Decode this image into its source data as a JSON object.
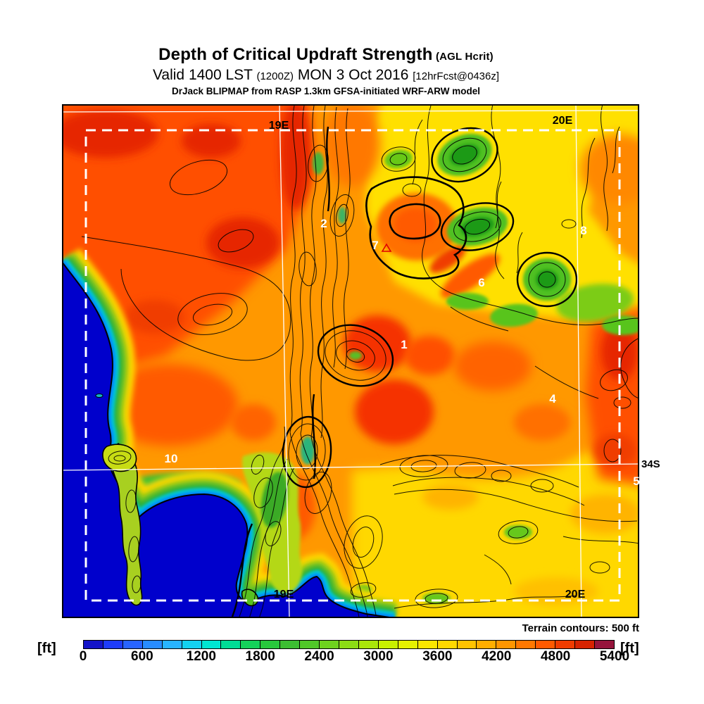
{
  "title": {
    "line1": "Depth of Critical Updraft Strength",
    "line1_suffix": " (AGL Hcrit)",
    "line2_a": "Valid 1400 LST ",
    "line2_b": "(1200Z)",
    "line2_c": " MON 3 Oct 2016 ",
    "line2_d": "[12hrFcst@0436z]",
    "line3": "DrJack BLIPMAP from RASP 1.3km GFSA-initiated WRF-ARW model"
  },
  "map": {
    "note": "Terrain contours: 500 ft",
    "grid_labels": {
      "top_19e": "19E",
      "top_20e": "20E",
      "bottom_19e": "19E",
      "bottom_20e": "20E",
      "right_34s": "34S"
    },
    "sites": [
      "1",
      "2",
      "4",
      "5",
      "6",
      "7",
      "8",
      "10"
    ],
    "colors": {
      "ocean": "#0000cc",
      "coastline": "#000000",
      "graticule": "#ffffff",
      "domain_boundary": "#ffffff",
      "terrain_contour": "#000000",
      "site_label": "#ffffff",
      "site_marker": "#e00000"
    }
  },
  "colorbar": {
    "unit_left": "[ft]",
    "unit_right": "[ft]",
    "ticks": [
      "0",
      "600",
      "1200",
      "1800",
      "2400",
      "3000",
      "3600",
      "4200",
      "4800",
      "5400"
    ],
    "min": 0,
    "max": 5400,
    "step_ft": 200,
    "segment_colors": [
      "#1414c8",
      "#1e3cfa",
      "#2864ff",
      "#288cff",
      "#28b4ff",
      "#14d2f0",
      "#00e6d2",
      "#00dc96",
      "#14d25a",
      "#28c83c",
      "#3cbe32",
      "#50c828",
      "#6ed21e",
      "#8cdc14",
      "#aae60a",
      "#c8f000",
      "#e6f000",
      "#fae600",
      "#ffd800",
      "#ffc300",
      "#ffae00",
      "#ff9600",
      "#ff7800",
      "#ff5a00",
      "#f03c00",
      "#d72300",
      "#96143c"
    ]
  }
}
